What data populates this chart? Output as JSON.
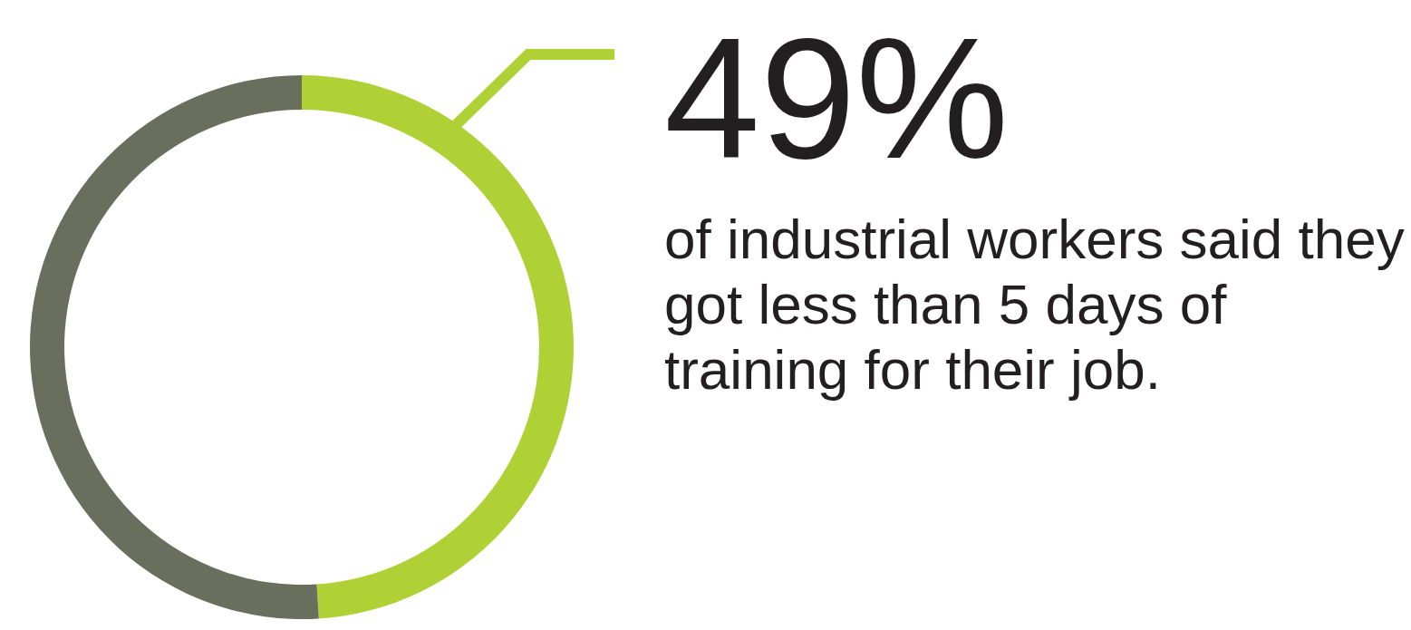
{
  "chart_data": {
    "type": "donut",
    "categories": [
      null,
      null
    ],
    "values": [
      49,
      51
    ],
    "colors": [
      "#b0d136",
      "#6a6e5d"
    ],
    "value_labels": [
      "49%",
      null
    ],
    "annotations": [
      "of industrial workers said they got less than 5 days of training for their job."
    ]
  }
}
